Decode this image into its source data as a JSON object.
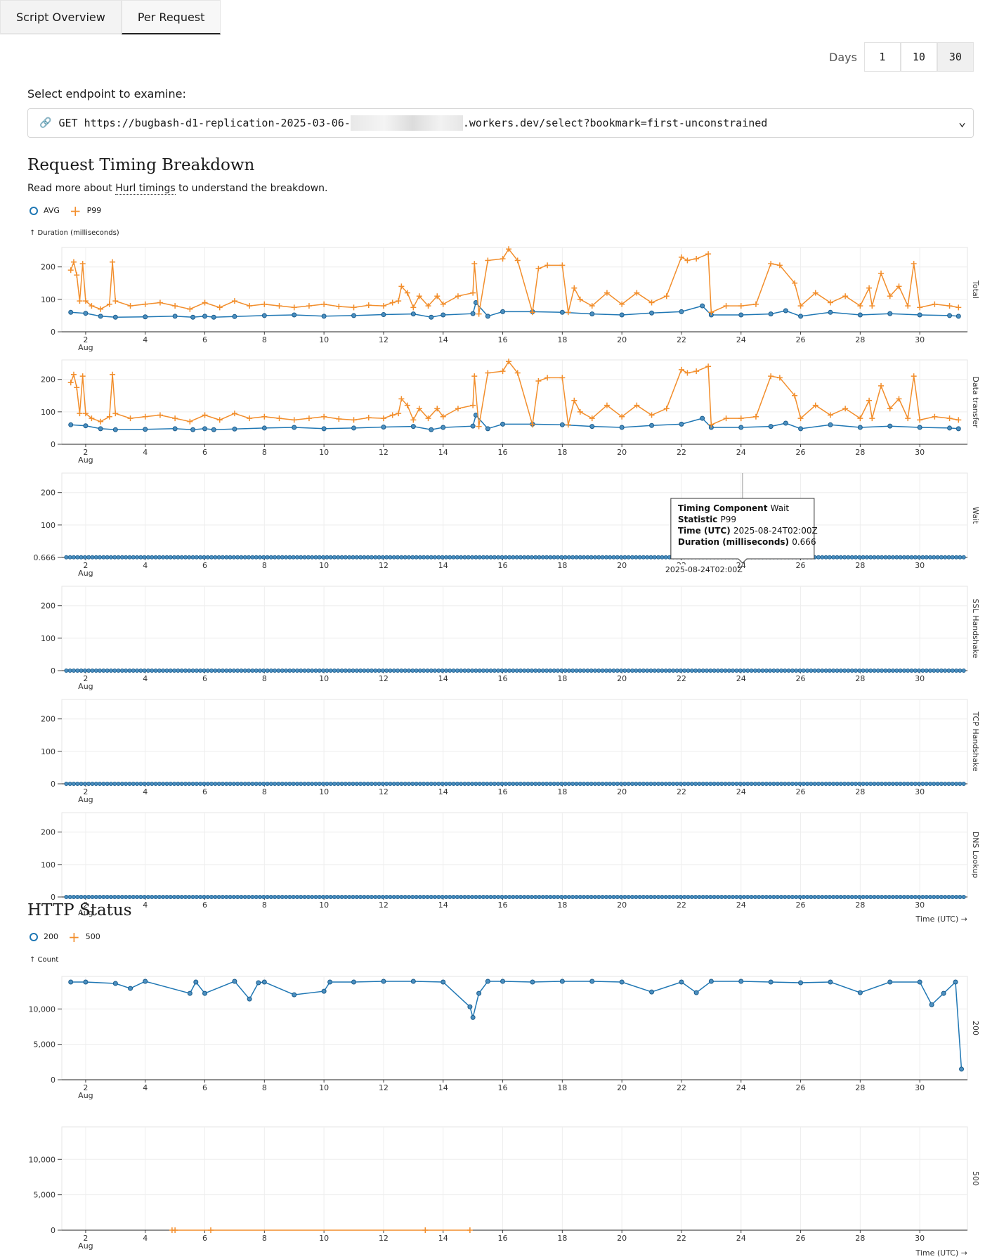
{
  "tabs": [
    {
      "label": "Script Overview"
    },
    {
      "label": "Per Request"
    }
  ],
  "days": {
    "label": "Days",
    "options": [
      "1",
      "10",
      "30"
    ],
    "selected": "30"
  },
  "endpoint": {
    "label": "Select endpoint to examine:",
    "method": "GET",
    "url_start": "https://bugbash-d1-replication-2025-03-06-",
    "url_end": ".workers.dev/select?bookmark=first-unconstrained"
  },
  "timing": {
    "title": "Request Timing Breakdown",
    "desc_pre": "Read more about ",
    "desc_link": "Hurl timings",
    "desc_post": " to understand the breakdown.",
    "legend": [
      {
        "name": "AVG",
        "color": "#1f77b4"
      },
      {
        "name": "P99",
        "color": "#f28e2c"
      }
    ],
    "y_axis_label": "↑ Duration (milliseconds)",
    "x_axis_label": "Time (UTC) →",
    "facets": [
      "Total",
      "Data transfer",
      "Wait",
      "SSL Handshake",
      "TCP Handshake",
      "DNS Lookup"
    ],
    "tooltip": {
      "rows": [
        {
          "k": "Timing Component",
          "v": "Wait"
        },
        {
          "k": "Statistic",
          "v": "P99"
        },
        {
          "k": "Time (UTC)",
          "v": "2025-08-24T02:00Z"
        },
        {
          "k": "Duration (milliseconds)",
          "v": "0.666"
        }
      ],
      "x_label": "2025-08-24T02:00Z",
      "y_label": "0.666"
    }
  },
  "http": {
    "title": "HTTP Status",
    "legend": [
      {
        "name": "200",
        "color": "#1f77b4"
      },
      {
        "name": "500",
        "color": "#f28e2c"
      }
    ],
    "y_axis_label": "↑ Count",
    "x_axis_label": "Time (UTC) →",
    "facets": [
      "200",
      "500"
    ]
  },
  "chart_data": [
    {
      "type": "line",
      "title": "Request Timing Breakdown",
      "ylabel": "Duration (milliseconds)",
      "xlabel": "Time (UTC)",
      "x_range": [
        "2025-08-01T12:00Z",
        "2025-08-31T12:00Z"
      ],
      "x_ticks": [
        "2 Aug",
        "4",
        "6",
        "8",
        "10",
        "12",
        "14",
        "16",
        "18",
        "20",
        "22",
        "24",
        "26",
        "28",
        "30"
      ],
      "ylim": [
        0,
        260
      ],
      "y_ticks": [
        0,
        100,
        200
      ],
      "facets": [
        {
          "name": "Total",
          "series": [
            {
              "name": "AVG",
              "x_days": [
                1.5,
                2,
                2.5,
                3,
                4,
                5,
                5.6,
                6,
                6.3,
                7,
                8,
                9,
                10,
                11,
                12,
                13,
                13.6,
                14,
                15,
                15.1,
                15.5,
                16,
                17,
                18,
                19,
                20,
                21,
                22,
                22.7,
                23,
                24,
                25,
                25.5,
                26,
                27,
                28,
                29,
                30,
                31,
                31.3
              ],
              "values": [
                60,
                57,
                48,
                45,
                46,
                48,
                45,
                48,
                45,
                47,
                50,
                52,
                48,
                50,
                53,
                55,
                45,
                52,
                56,
                90,
                48,
                62,
                62,
                60,
                55,
                52,
                58,
                62,
                80,
                52,
                52,
                55,
                65,
                48,
                60,
                52,
                56,
                52,
                50,
                48
              ]
            },
            {
              "name": "P99",
              "x_days": [
                1.5,
                1.6,
                1.7,
                1.8,
                1.9,
                2.0,
                2.2,
                2.5,
                2.8,
                2.9,
                3.0,
                3.5,
                4,
                4.5,
                5,
                5.5,
                6,
                6.5,
                7,
                7.5,
                8,
                8.5,
                9,
                9.5,
                10,
                10.5,
                11,
                11.5,
                12,
                12.3,
                12.5,
                12.6,
                12.8,
                13,
                13.2,
                13.5,
                13.8,
                14,
                14.5,
                15,
                15.05,
                15.2,
                15.5,
                16,
                16.2,
                16.5,
                17,
                17.2,
                17.5,
                18,
                18.2,
                18.4,
                18.6,
                19,
                19.5,
                20,
                20.5,
                21,
                21.5,
                22,
                22.2,
                22.5,
                22.9,
                23,
                23.5,
                24,
                24.5,
                25,
                25.3,
                25.8,
                26,
                26.5,
                27,
                27.5,
                28,
                28.3,
                28.4,
                28.7,
                29,
                29.3,
                29.6,
                29.8,
                30,
                30.5,
                31,
                31.3
              ],
              "values": [
                190,
                215,
                175,
                95,
                210,
                95,
                80,
                70,
                85,
                215,
                95,
                80,
                85,
                90,
                80,
                70,
                90,
                75,
                95,
                80,
                85,
                80,
                75,
                80,
                85,
                78,
                75,
                82,
                80,
                90,
                95,
                140,
                120,
                75,
                110,
                80,
                110,
                85,
                110,
                120,
                210,
                55,
                220,
                225,
                255,
                220,
                60,
                195,
                205,
                205,
                60,
                135,
                100,
                80,
                120,
                85,
                120,
                90,
                110,
                230,
                220,
                225,
                240,
                60,
                80,
                80,
                85,
                210,
                205,
                150,
                80,
                120,
                90,
                110,
                80,
                135,
                80,
                180,
                110,
                140,
                80,
                210,
                75,
                85,
                80,
                75
              ]
            }
          ]
        },
        {
          "name": "Data transfer",
          "series": [
            {
              "name": "AVG",
              "x_days": [
                1.5,
                2,
                2.5,
                3,
                4,
                5,
                5.6,
                6,
                6.3,
                7,
                8,
                9,
                10,
                11,
                12,
                13,
                13.6,
                14,
                15,
                15.1,
                15.5,
                16,
                17,
                18,
                19,
                20,
                21,
                22,
                22.7,
                23,
                24,
                25,
                25.5,
                26,
                27,
                28,
                29,
                30,
                31,
                31.3
              ],
              "values": [
                60,
                57,
                48,
                45,
                46,
                48,
                45,
                48,
                45,
                47,
                50,
                52,
                48,
                50,
                53,
                55,
                45,
                52,
                56,
                90,
                48,
                62,
                62,
                60,
                55,
                52,
                58,
                62,
                80,
                52,
                52,
                55,
                65,
                48,
                60,
                52,
                56,
                52,
                50,
                48
              ]
            },
            {
              "name": "P99",
              "x_days": [
                1.5,
                1.6,
                1.7,
                1.8,
                1.9,
                2.0,
                2.2,
                2.5,
                2.8,
                2.9,
                3.0,
                3.5,
                4,
                4.5,
                5,
                5.5,
                6,
                6.5,
                7,
                7.5,
                8,
                8.5,
                9,
                9.5,
                10,
                10.5,
                11,
                11.5,
                12,
                12.3,
                12.5,
                12.6,
                12.8,
                13,
                13.2,
                13.5,
                13.8,
                14,
                14.5,
                15,
                15.05,
                15.2,
                15.5,
                16,
                16.2,
                16.5,
                17,
                17.2,
                17.5,
                18,
                18.2,
                18.4,
                18.6,
                19,
                19.5,
                20,
                20.5,
                21,
                21.5,
                22,
                22.2,
                22.5,
                22.9,
                23,
                23.5,
                24,
                24.5,
                25,
                25.3,
                25.8,
                26,
                26.5,
                27,
                27.5,
                28,
                28.3,
                28.4,
                28.7,
                29,
                29.3,
                29.6,
                29.8,
                30,
                30.5,
                31,
                31.3
              ],
              "values": [
                190,
                215,
                175,
                95,
                210,
                95,
                80,
                70,
                85,
                215,
                95,
                80,
                85,
                90,
                80,
                70,
                90,
                75,
                95,
                80,
                85,
                80,
                75,
                80,
                85,
                78,
                75,
                82,
                80,
                90,
                95,
                140,
                120,
                75,
                110,
                80,
                110,
                85,
                110,
                120,
                210,
                55,
                220,
                225,
                255,
                220,
                60,
                195,
                205,
                205,
                60,
                135,
                100,
                80,
                120,
                85,
                120,
                90,
                110,
                230,
                220,
                225,
                240,
                60,
                80,
                80,
                85,
                210,
                205,
                150,
                80,
                120,
                90,
                110,
                80,
                135,
                80,
                180,
                110,
                140,
                80,
                210,
                75,
                85,
                80,
                75
              ]
            }
          ]
        },
        {
          "name": "Wait",
          "constant": 0.666
        },
        {
          "name": "SSL Handshake",
          "constant": 0
        },
        {
          "name": "TCP Handshake",
          "constant": 0
        },
        {
          "name": "DNS Lookup",
          "constant": 0
        }
      ]
    },
    {
      "type": "line",
      "title": "HTTP Status",
      "ylabel": "Count",
      "xlabel": "Time (UTC)",
      "ylim": [
        0,
        14000
      ],
      "y_ticks": [
        0,
        5000,
        10000
      ],
      "facets": [
        {
          "name": "200",
          "x_days": [
            1.5,
            2,
            3,
            3.5,
            4,
            5.5,
            5.7,
            6,
            7,
            7.5,
            7.8,
            8,
            9,
            10,
            10.2,
            11,
            12,
            13,
            14,
            14.9,
            15,
            15.2,
            15.5,
            16,
            17,
            18,
            19,
            20,
            21,
            22,
            22.5,
            23,
            24,
            25,
            26,
            27,
            28,
            29,
            30,
            30.4,
            30.8,
            31.2,
            31.4
          ],
          "values": [
            13800,
            13800,
            13600,
            12900,
            13900,
            12200,
            13800,
            12200,
            13900,
            11400,
            13700,
            13800,
            12000,
            12500,
            13800,
            13800,
            13900,
            13900,
            13800,
            10300,
            8800,
            12200,
            13900,
            13900,
            13800,
            13900,
            13900,
            13800,
            12400,
            13800,
            12300,
            13900,
            13900,
            13800,
            13700,
            13800,
            12300,
            13800,
            13800,
            10600,
            12200,
            13800,
            1500
          ]
        },
        {
          "name": "500",
          "x_days": [
            4.9,
            5.0,
            6.2,
            13.4,
            14.9
          ],
          "values": [
            0,
            0,
            0,
            0,
            0
          ]
        }
      ]
    }
  ]
}
